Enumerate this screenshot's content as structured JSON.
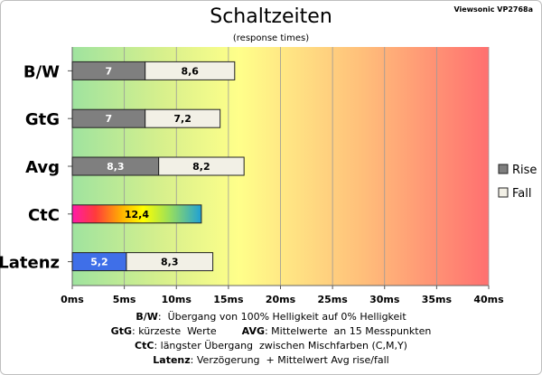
{
  "header": {
    "title": "Schaltzeiten",
    "subtitle": "(response times)",
    "model": "Viewsonic VP2768a"
  },
  "chart_data": {
    "type": "bar",
    "orientation": "horizontal",
    "stacked": true,
    "title": "Schaltzeiten",
    "subtitle": "(response times)",
    "categories": [
      "B/W",
      "GtG",
      "Avg",
      "CtC",
      "Latenz"
    ],
    "series": [
      {
        "name": "Rise",
        "values": [
          7,
          7,
          8.3,
          null,
          5.2
        ],
        "color": "#7f7f7f"
      },
      {
        "name": "Fall",
        "values": [
          8.6,
          7.2,
          8.2,
          null,
          8.3
        ],
        "color": "#f2f0e6"
      }
    ],
    "single": {
      "category": "CtC",
      "value": 12.4
    },
    "latency_rise_color": "#3f6fe8",
    "xlim": [
      0,
      40
    ],
    "xticks": [
      "0ms",
      "5ms",
      "10ms",
      "15ms",
      "20ms",
      "25ms",
      "30ms",
      "35ms",
      "40ms"
    ],
    "grid": true,
    "legend": {
      "position": "right",
      "items": [
        "Rise",
        "Fall"
      ]
    },
    "bar_labels": {
      "B/W": [
        "7",
        "8,6"
      ],
      "GtG": [
        "7",
        "7,2"
      ],
      "Avg": [
        "8,3",
        "8,2"
      ],
      "CtC": [
        "12,4"
      ],
      "Latenz": [
        "5,2",
        "8,3"
      ]
    }
  },
  "footer": [
    {
      "key": "B/W",
      "text": ":  Übergang von 100% Helligkeit auf 0% Helligkeit"
    },
    {
      "key": "GtG",
      "text": ": kürzeste  Werte",
      "key2": "AVG",
      "text2": ": Mittelwerte  an 15 Messpunkten"
    },
    {
      "key": "CtC",
      "text": ": längster Übergang  zwischen Mischfarben (C,M,Y)"
    },
    {
      "key": "Latenz",
      "text": ": Verzögerung  + Mittelwert Avg rise/fall"
    }
  ]
}
